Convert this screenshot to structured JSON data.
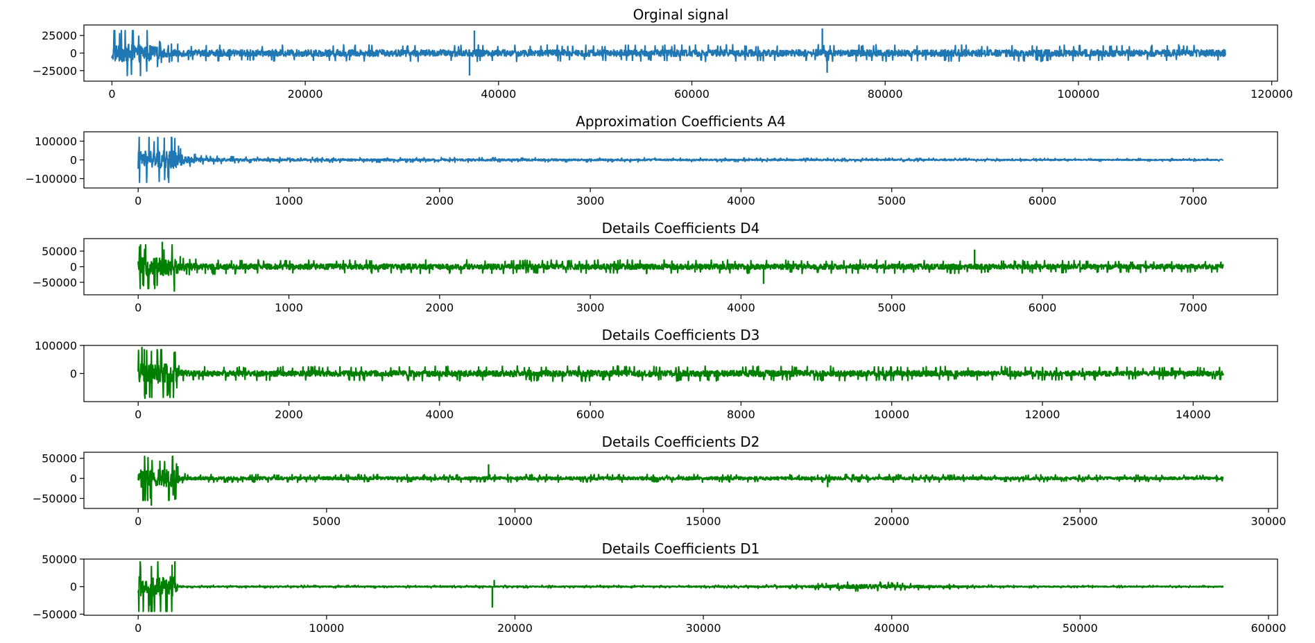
{
  "chart_data": [
    {
      "type": "line",
      "title": "Orginal signal",
      "color": "#1f77b4",
      "xlim": [
        -2900,
        120600
      ],
      "ylim": [
        -40000,
        40000
      ],
      "xticks": [
        0,
        20000,
        40000,
        60000,
        80000,
        100000,
        120000
      ],
      "xtick_labels": [
        "0",
        "20000",
        "40000",
        "60000",
        "80000",
        "100000",
        "120000"
      ],
      "yticks": [
        25000,
        0,
        -25000
      ],
      "ytick_labels": [
        "25000",
        "0",
        "−25000"
      ],
      "x_max": 115200,
      "envelope": {
        "x": [
          0,
          3800,
          4000,
          5000,
          6000,
          8000,
          20000,
          40000,
          60000,
          80000,
          100000,
          115200
        ],
        "amplitude": [
          32000,
          32000,
          28000,
          18000,
          13000,
          12000,
          12000,
          12000,
          12000,
          12000,
          12000,
          12000
        ]
      },
      "spikes": [
        {
          "x": 37000,
          "y": -32000
        },
        {
          "x": 37500,
          "y": 32000
        },
        {
          "x": 73500,
          "y": 35000
        },
        {
          "x": 74000,
          "y": -28000
        }
      ]
    },
    {
      "type": "line",
      "title": "Approximation Coefficients A4",
      "color": "#1f77b4",
      "xlim": [
        -360,
        7560
      ],
      "ylim": [
        -150000,
        150000
      ],
      "xticks": [
        0,
        1000,
        2000,
        3000,
        4000,
        5000,
        6000,
        7000
      ],
      "xtick_labels": [
        "0",
        "1000",
        "2000",
        "3000",
        "4000",
        "5000",
        "6000",
        "7000"
      ],
      "yticks": [
        100000,
        0,
        -100000
      ],
      "ytick_labels": [
        "100000",
        "0",
        "−100000"
      ],
      "x_max": 7200,
      "envelope": {
        "x": [
          0,
          240,
          260,
          320,
          400,
          600,
          1000,
          3000,
          5000,
          7200
        ],
        "amplitude": [
          120000,
          120000,
          90000,
          50000,
          28000,
          18000,
          14000,
          12000,
          9000,
          7000
        ]
      },
      "spikes": []
    },
    {
      "type": "line",
      "title": "Details Coefficients D4",
      "color": "#008000",
      "xlim": [
        -360,
        7560
      ],
      "ylim": [
        -90000,
        90000
      ],
      "xticks": [
        0,
        1000,
        2000,
        3000,
        4000,
        5000,
        6000,
        7000
      ],
      "xtick_labels": [
        "0",
        "1000",
        "2000",
        "3000",
        "4000",
        "5000",
        "6000",
        "7000"
      ],
      "yticks": [
        50000,
        0,
        -50000
      ],
      "ytick_labels": [
        "50000",
        "0",
        "−50000"
      ],
      "x_max": 7200,
      "envelope": {
        "x": [
          0,
          240,
          280,
          400,
          1000,
          3000,
          5000,
          7200
        ],
        "amplitude": [
          70000,
          70000,
          35000,
          25000,
          22000,
          22000,
          22000,
          18000
        ]
      },
      "spikes": [
        {
          "x": 160,
          "y": 80000
        },
        {
          "x": 240,
          "y": -80000
        },
        {
          "x": 4150,
          "y": -55000
        },
        {
          "x": 5550,
          "y": 55000
        }
      ]
    },
    {
      "type": "line",
      "title": "Details Coefficients D3",
      "color": "#008000",
      "xlim": [
        -720,
        15120
      ],
      "ylim": [
        -100000,
        100000
      ],
      "xticks": [
        0,
        2000,
        4000,
        6000,
        8000,
        10000,
        12000,
        14000
      ],
      "xtick_labels": [
        "0",
        "2000",
        "4000",
        "6000",
        "8000",
        "10000",
        "12000",
        "14000"
      ],
      "yticks": [
        100000,
        0
      ],
      "ytick_labels": [
        "100000",
        "0"
      ],
      "x_max": 14400,
      "envelope": {
        "x": [
          0,
          500,
          540,
          800,
          2000,
          6000,
          10000,
          14400
        ],
        "amplitude": [
          85000,
          85000,
          30000,
          25000,
          25000,
          28000,
          26000,
          22000
        ]
      },
      "spikes": [
        {
          "x": 50,
          "y": 95000
        },
        {
          "x": 90,
          "y": -90000
        }
      ]
    },
    {
      "type": "line",
      "title": "Details Coefficients D2",
      "color": "#008000",
      "xlim": [
        -1440,
        30240
      ],
      "ylim": [
        -75000,
        65000
      ],
      "xticks": [
        0,
        5000,
        10000,
        15000,
        20000,
        25000,
        30000
      ],
      "xtick_labels": [
        "0",
        "5000",
        "10000",
        "15000",
        "20000",
        "25000",
        "30000"
      ],
      "yticks": [
        50000,
        0,
        -50000
      ],
      "ytick_labels": [
        "50000",
        "0",
        "−50000"
      ],
      "x_max": 28800,
      "envelope": {
        "x": [
          0,
          1000,
          1100,
          1400,
          3000,
          10000,
          20000,
          28800
        ],
        "amplitude": [
          55000,
          55000,
          14000,
          10000,
          10000,
          10000,
          10000,
          8000
        ]
      },
      "spikes": [
        {
          "x": 350,
          "y": -68000
        },
        {
          "x": 9300,
          "y": 35000
        },
        {
          "x": 18300,
          "y": -22000
        }
      ]
    },
    {
      "type": "line",
      "title": "Details Coefficients D1",
      "color": "#008000",
      "xlim": [
        -2880,
        60480
      ],
      "ylim": [
        -52000,
        50000
      ],
      "xticks": [
        0,
        10000,
        20000,
        30000,
        40000,
        50000,
        60000
      ],
      "xtick_labels": [
        "0",
        "10000",
        "20000",
        "30000",
        "40000",
        "50000",
        "60000"
      ],
      "yticks": [
        50000,
        0,
        -50000
      ],
      "ytick_labels": [
        "50000",
        "0",
        "−50000"
      ],
      "x_max": 57600,
      "envelope": {
        "x": [
          0,
          2000,
          2100,
          2500,
          30000,
          35000,
          38500,
          42000,
          46000,
          57600
        ],
        "amplitude": [
          45000,
          45000,
          6000,
          2500,
          2500,
          4000,
          10000,
          5000,
          2500,
          2000
        ]
      },
      "spikes": [
        {
          "x": 18800,
          "y": -38000
        },
        {
          "x": 18900,
          "y": 12000
        },
        {
          "x": 1950,
          "y": 46000
        }
      ]
    }
  ]
}
